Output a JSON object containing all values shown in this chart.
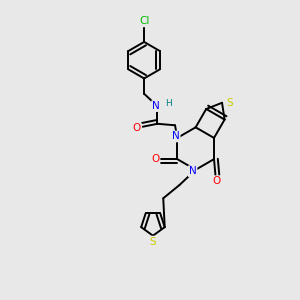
{
  "bg_color": "#e8e8e8",
  "atom_colors": {
    "C": "#000000",
    "N": "#0000ff",
    "O": "#ff0000",
    "S": "#cccc00",
    "Cl": "#00bb00",
    "H": "#008080"
  },
  "bond_color": "#000000",
  "bond_width": 1.4
}
